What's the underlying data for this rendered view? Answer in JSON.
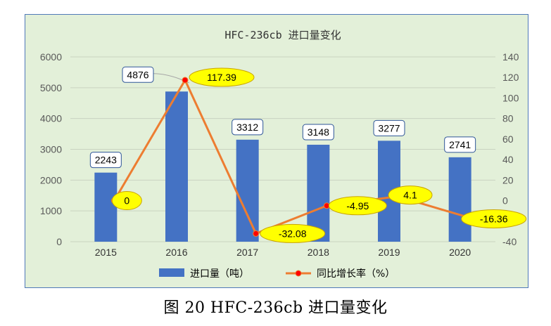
{
  "caption": "图 20   HFC-236cb 进口量变化",
  "chart_data": {
    "type": "bar",
    "title": "HFC-236cb 进口量变化",
    "categories": [
      "2015",
      "2016",
      "2017",
      "2018",
      "2019",
      "2020"
    ],
    "series": [
      {
        "name": "进口量（吨）",
        "type": "bar",
        "axis": "left",
        "values": [
          2243,
          4876,
          3312,
          3148,
          3277,
          2741
        ],
        "labels": [
          "2243",
          "4876",
          "3312",
          "3148",
          "3277",
          "2741"
        ],
        "color": "#4472c4"
      },
      {
        "name": "同比增长率（%）",
        "type": "line",
        "axis": "right",
        "values": [
          0,
          117.39,
          -32.08,
          -4.95,
          4.1,
          -16.36
        ],
        "labels": [
          "0",
          "117.39",
          "-32.08",
          "-4.95",
          "4.1",
          "-16.36"
        ],
        "color": "#ed7d31",
        "marker_color": "#ff0000"
      }
    ],
    "y_left": {
      "lim": [
        0,
        6000
      ],
      "ticks": [
        "0",
        "1000",
        "2000",
        "3000",
        "4000",
        "5000",
        "6000"
      ]
    },
    "y_right": {
      "lim": [
        -40,
        140
      ],
      "ticks": [
        "-40",
        "-20",
        "0",
        "20",
        "40",
        "60",
        "80",
        "100",
        "120",
        "140"
      ]
    },
    "grid": true,
    "legend": "bottom-center",
    "colors": {
      "background": "#e3f0d9",
      "frame": "#4f79b8",
      "grid": "#c9d3c0",
      "axis_text": "#595959",
      "bar_label_border": "#2e5597",
      "line_label_fill": "#ffff00",
      "line_label_border": "#c9a400"
    }
  }
}
